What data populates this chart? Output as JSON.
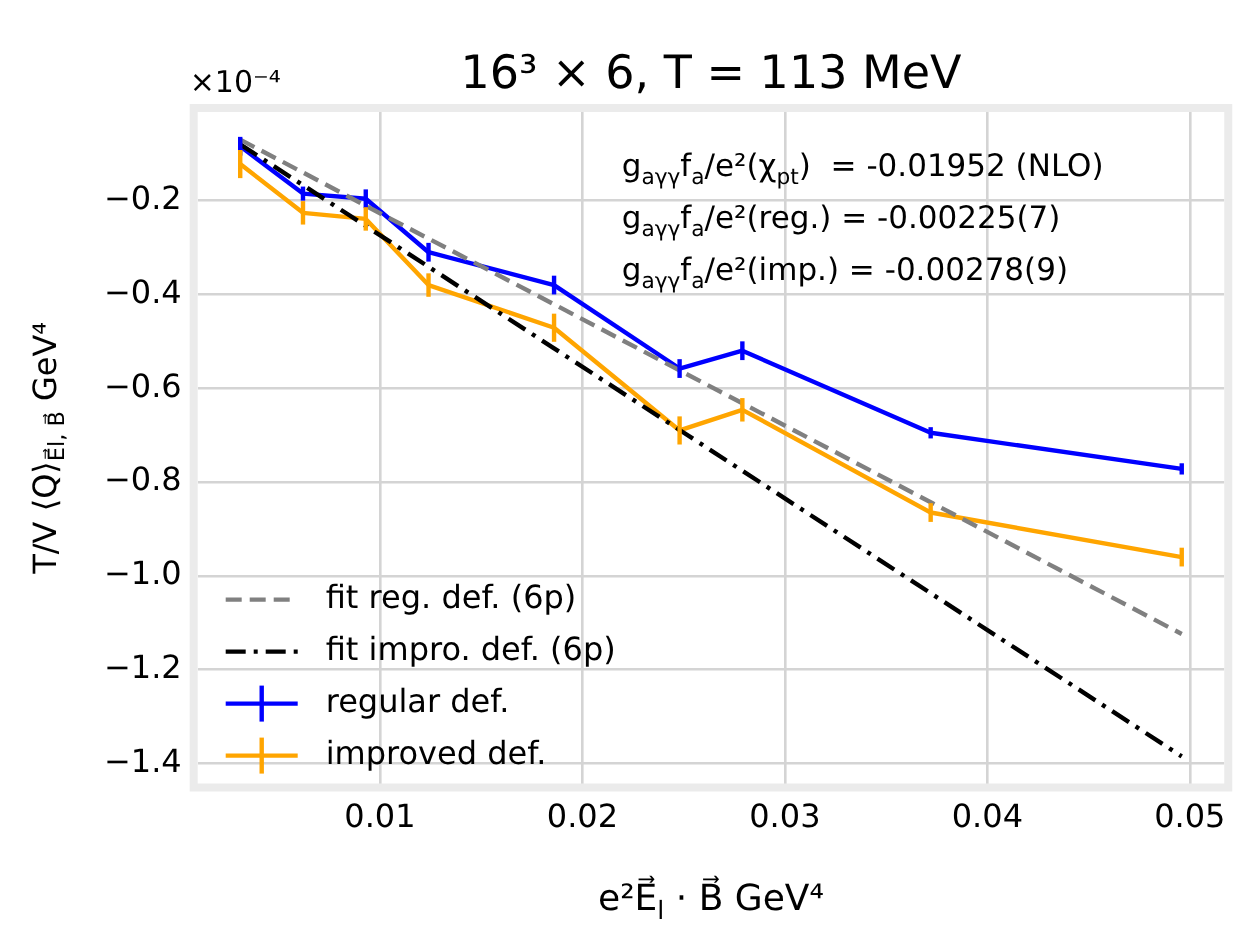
{
  "chart_data": {
    "type": "line",
    "title": "16³ × 6, T = 113 MeV",
    "xlabel": "e²E⃗$_{l}$ · B⃗ GeV⁴",
    "ylabel": "T/V ⟨Q⟩$_{E⃗l, B⃗}$ GeV⁴",
    "annotations": [
      "×10⁻⁴",
      "g$_{aγγ}$f$_{a}$/e²(χ$_{pt}$)  = -0.01952 (NLO)",
      "g$_{aγγ}$f$_{a}$/e²(reg.) = -0.00225(7)",
      "g$_{aγγ}$f$_{a}$/e²(imp.) = -0.00278(9)"
    ],
    "x": [
      0.0031,
      0.0062,
      0.0093,
      0.0124,
      0.0186,
      0.0248,
      0.0279,
      0.0372,
      0.0496
    ],
    "series": [
      {
        "name": "fit reg. def. (6p)",
        "color": "#808080",
        "values": [
          -0.07,
          -0.14,
          -0.211,
          -0.281,
          -0.421,
          -0.562,
          -0.632,
          -0.843,
          -1.124
        ],
        "line_style": "dashed"
      },
      {
        "name": "fit impro. def. (6p)",
        "color": "#000000",
        "values": [
          -0.08,
          -0.167,
          -0.254,
          -0.341,
          -0.515,
          -0.689,
          -0.776,
          -1.037,
          -1.385
        ],
        "line_style": "dashdot"
      },
      {
        "name": "regular def.",
        "color": "#0000ff",
        "values": [
          -0.084,
          -0.185,
          -0.196,
          -0.31,
          -0.38,
          -0.558,
          -0.52,
          -0.695,
          -0.772
        ],
        "errors": [
          0.02,
          0.015,
          0.02,
          0.02,
          0.02,
          0.02,
          0.02,
          0.012,
          0.012
        ]
      },
      {
        "name": "improved def.",
        "color": "#ffa500",
        "values": [
          -0.122,
          -0.226,
          -0.239,
          -0.38,
          -0.471,
          -0.69,
          -0.646,
          -0.865,
          -0.96
        ],
        "errors": [
          0.03,
          0.025,
          0.025,
          0.025,
          0.03,
          0.03,
          0.025,
          0.02,
          0.02
        ]
      }
    ],
    "xlim": [
      0.001,
      0.0517
    ],
    "xticks": [
      0.01,
      0.02,
      0.03,
      0.04,
      0.05
    ],
    "ylim": [
      -1.443,
      -0.011
    ],
    "yticks": [
      {
        "value": -0.2,
        "label": "−0.2"
      },
      {
        "value": -0.4,
        "label": "−0.4"
      },
      {
        "value": -0.6,
        "label": "−0.6"
      },
      {
        "value": -0.8,
        "label": "−0.8"
      },
      {
        "value": -1.0,
        "label": "−1.0"
      },
      {
        "value": -1.2,
        "label": "−1.2"
      },
      {
        "value": -1.4,
        "label": "−1.4"
      }
    ],
    "grid": true,
    "legend": "bottom left",
    "marker": "none",
    "line_style": "solid"
  }
}
